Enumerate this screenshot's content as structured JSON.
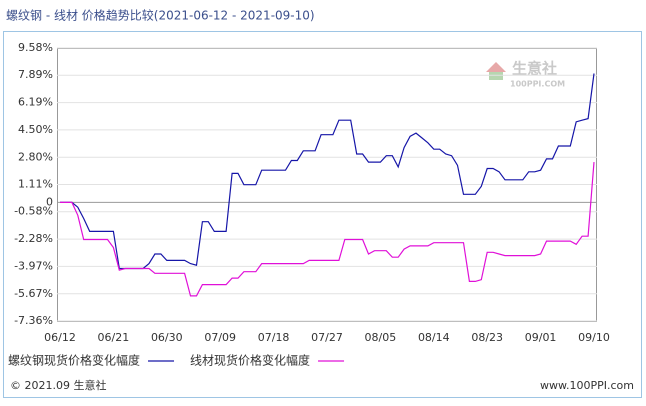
{
  "chart_data": {
    "type": "line",
    "title": "螺纹钢 - 线材 价格趋势比较(2021-06-12 - 2021-09-10)",
    "categories": [
      "06/12",
      null,
      null,
      null,
      null,
      null,
      null,
      null,
      null,
      "06/21",
      null,
      null,
      null,
      null,
      null,
      null,
      null,
      null,
      "06/30",
      null,
      null,
      null,
      null,
      null,
      null,
      null,
      null,
      "07/09",
      null,
      null,
      null,
      null,
      null,
      null,
      null,
      null,
      "07/18",
      null,
      null,
      null,
      null,
      null,
      null,
      null,
      null,
      "07/27",
      null,
      null,
      null,
      null,
      null,
      null,
      null,
      null,
      "08/05",
      null,
      null,
      null,
      null,
      null,
      null,
      null,
      null,
      "08/14",
      null,
      null,
      null,
      null,
      null,
      null,
      null,
      null,
      "08/23",
      null,
      null,
      null,
      null,
      null,
      null,
      null,
      null,
      "09/01",
      null,
      null,
      null,
      null,
      null,
      null,
      null,
      null,
      "09/10"
    ],
    "series": [
      {
        "name": "螺纹钢现货价格变化幅度",
        "color": "#1616a8",
        "values": [
          0,
          0,
          0,
          -0.3,
          -1.0,
          -1.8,
          -1.8,
          -1.8,
          -1.8,
          -1.8,
          -4.1,
          -4.1,
          -4.1,
          -4.1,
          -4.1,
          -3.8,
          -3.2,
          -3.2,
          -3.6,
          -3.6,
          -3.6,
          -3.6,
          -3.8,
          -3.9,
          -1.2,
          -1.2,
          -1.8,
          -1.8,
          -1.8,
          1.8,
          1.8,
          1.1,
          1.1,
          1.1,
          2.0,
          2.0,
          2.0,
          2.0,
          2.0,
          2.6,
          2.6,
          3.2,
          3.2,
          3.2,
          4.2,
          4.2,
          4.2,
          5.1,
          5.1,
          5.1,
          3.0,
          3.0,
          2.5,
          2.5,
          2.5,
          2.9,
          2.9,
          2.2,
          3.4,
          4.1,
          4.3,
          4.0,
          3.7,
          3.3,
          3.3,
          3.0,
          2.9,
          2.3,
          0.5,
          0.5,
          0.5,
          1.0,
          2.1,
          2.1,
          1.9,
          1.4,
          1.4,
          1.4,
          1.4,
          1.9,
          1.9,
          2.0,
          2.7,
          2.7,
          3.5,
          3.5,
          3.5,
          5.0,
          5.1,
          5.2,
          8.0
        ]
      },
      {
        "name": "线材现货价格变化幅度",
        "color": "#e010d8",
        "values": [
          0,
          0,
          0,
          -0.8,
          -2.3,
          -2.3,
          -2.3,
          -2.3,
          -2.3,
          -2.8,
          -4.2,
          -4.1,
          -4.1,
          -4.1,
          -4.1,
          -4.1,
          -4.4,
          -4.4,
          -4.4,
          -4.4,
          -4.4,
          -4.4,
          -5.8,
          -5.8,
          -5.1,
          -5.1,
          -5.1,
          -5.1,
          -5.1,
          -4.7,
          -4.7,
          -4.3,
          -4.3,
          -4.3,
          -3.8,
          -3.8,
          -3.8,
          -3.8,
          -3.8,
          -3.8,
          -3.8,
          -3.8,
          -3.6,
          -3.6,
          -3.6,
          -3.6,
          -3.6,
          -3.6,
          -2.3,
          -2.3,
          -2.3,
          -2.3,
          -3.2,
          -3.0,
          -3.0,
          -3.0,
          -3.4,
          -3.4,
          -2.9,
          -2.7,
          -2.7,
          -2.7,
          -2.7,
          -2.5,
          -2.5,
          -2.5,
          -2.5,
          -2.5,
          -2.5,
          -4.9,
          -4.9,
          -4.8,
          -3.1,
          -3.1,
          -3.2,
          -3.3,
          -3.3,
          -3.3,
          -3.3,
          -3.3,
          -3.3,
          -3.2,
          -2.4,
          -2.4,
          -2.4,
          -2.4,
          -2.4,
          -2.6,
          -2.1,
          -2.1,
          2.5
        ]
      }
    ],
    "ylim": [
      -7.36,
      9.58
    ],
    "yticks": [
      {
        "value": 9.58,
        "label": "9.58%"
      },
      {
        "value": 7.89,
        "label": "7.89%"
      },
      {
        "value": 6.19,
        "label": "6.19%"
      },
      {
        "value": 4.5,
        "label": "4.50%"
      },
      {
        "value": 2.8,
        "label": "2.80%"
      },
      {
        "value": 1.11,
        "label": "1.11%"
      },
      0,
      {
        "value": -0.58,
        "label": "-0.58%"
      },
      {
        "value": -2.28,
        "label": "-2.28%"
      },
      {
        "value": -3.97,
        "label": "-3.97%"
      },
      {
        "value": -5.67,
        "label": "-5.67%"
      },
      {
        "value": -7.36,
        "label": "-7.36%"
      }
    ],
    "grid": true,
    "legend": "bottom",
    "watermark": {
      "name": "生意社",
      "site": "100PPI.COM"
    }
  },
  "footer": {
    "copyright": "© 2021.09 生意社",
    "site": "www.100PPI.com"
  }
}
